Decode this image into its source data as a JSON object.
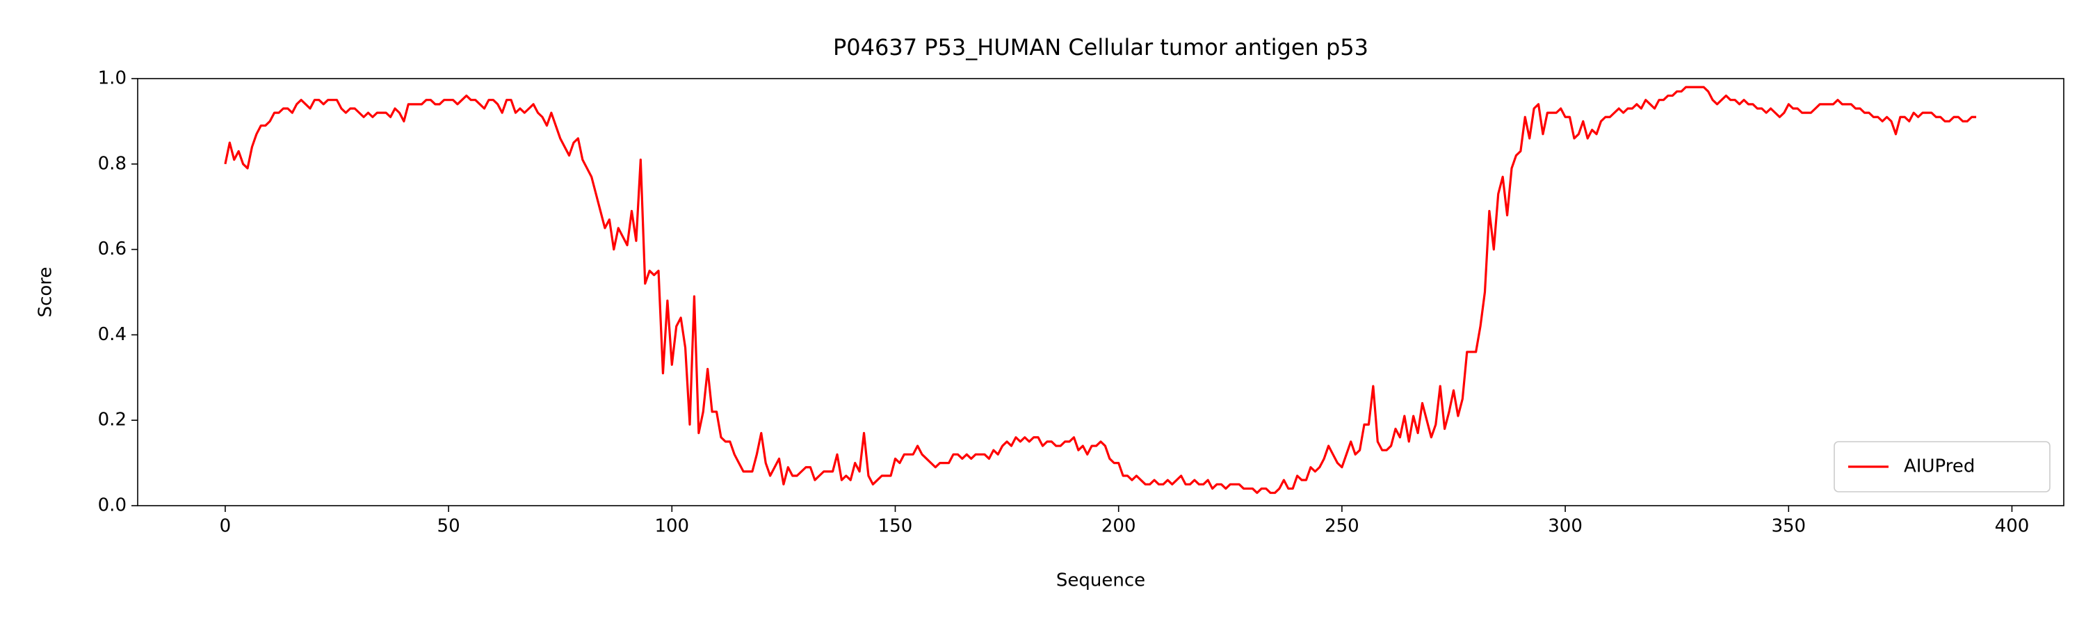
{
  "chart_data": {
    "type": "line",
    "title": "P04637 P53_HUMAN Cellular tumor antigen p53",
    "xlabel": "Sequence",
    "ylabel": "Score",
    "x": [
      0,
      1,
      2,
      3,
      4,
      5,
      6,
      7,
      8,
      9,
      10,
      11,
      12,
      13,
      14,
      15,
      16,
      17,
      18,
      19,
      20,
      21,
      22,
      23,
      24,
      25,
      26,
      27,
      28,
      29,
      30,
      31,
      32,
      33,
      34,
      35,
      36,
      37,
      38,
      39,
      40,
      41,
      42,
      43,
      44,
      45,
      46,
      47,
      48,
      49,
      50,
      51,
      52,
      53,
      54,
      55,
      56,
      57,
      58,
      59,
      60,
      61,
      62,
      63,
      64,
      65,
      66,
      67,
      68,
      69,
      70,
      71,
      72,
      73,
      74,
      75,
      76,
      77,
      78,
      79,
      80,
      81,
      82,
      83,
      84,
      85,
      86,
      87,
      88,
      89,
      90,
      91,
      92,
      93,
      94,
      95,
      96,
      97,
      98,
      99,
      100,
      101,
      102,
      103,
      104,
      105,
      106,
      107,
      108,
      109,
      110,
      111,
      112,
      113,
      114,
      115,
      116,
      117,
      118,
      119,
      120,
      121,
      122,
      123,
      124,
      125,
      126,
      127,
      128,
      129,
      130,
      131,
      132,
      133,
      134,
      135,
      136,
      137,
      138,
      139,
      140,
      141,
      142,
      143,
      144,
      145,
      146,
      147,
      148,
      149,
      150,
      151,
      152,
      153,
      154,
      155,
      156,
      157,
      158,
      159,
      160,
      161,
      162,
      163,
      164,
      165,
      166,
      167,
      168,
      169,
      170,
      171,
      172,
      173,
      174,
      175,
      176,
      177,
      178,
      179,
      180,
      181,
      182,
      183,
      184,
      185,
      186,
      187,
      188,
      189,
      190,
      191,
      192,
      193,
      194,
      195,
      196,
      197,
      198,
      199,
      200,
      201,
      202,
      203,
      204,
      205,
      206,
      207,
      208,
      209,
      210,
      211,
      212,
      213,
      214,
      215,
      216,
      217,
      218,
      219,
      220,
      221,
      222,
      223,
      224,
      225,
      226,
      227,
      228,
      229,
      230,
      231,
      232,
      233,
      234,
      235,
      236,
      237,
      238,
      239,
      240,
      241,
      242,
      243,
      244,
      245,
      246,
      247,
      248,
      249,
      250,
      251,
      252,
      253,
      254,
      255,
      256,
      257,
      258,
      259,
      260,
      261,
      262,
      263,
      264,
      265,
      266,
      267,
      268,
      269,
      270,
      271,
      272,
      273,
      274,
      275,
      276,
      277,
      278,
      279,
      280,
      281,
      282,
      283,
      284,
      285,
      286,
      287,
      288,
      289,
      290,
      291,
      292,
      293,
      294,
      295,
      296,
      297,
      298,
      299,
      300,
      301,
      302,
      303,
      304,
      305,
      306,
      307,
      308,
      309,
      310,
      311,
      312,
      313,
      314,
      315,
      316,
      317,
      318,
      319,
      320,
      321,
      322,
      323,
      324,
      325,
      326,
      327,
      328,
      329,
      330,
      331,
      332,
      333,
      334,
      335,
      336,
      337,
      338,
      339,
      340,
      341,
      342,
      343,
      344,
      345,
      346,
      347,
      348,
      349,
      350,
      351,
      352,
      353,
      354,
      355,
      356,
      357,
      358,
      359,
      360,
      361,
      362,
      363,
      364,
      365,
      366,
      367,
      368,
      369,
      370,
      371,
      372,
      373,
      374,
      375,
      376,
      377,
      378,
      379,
      380,
      381,
      382,
      383,
      384,
      385,
      386,
      387,
      388,
      389,
      390,
      391,
      392
    ],
    "series": [
      {
        "name": "AIUPred",
        "color": "#ff0000",
        "values": [
          0.8,
          0.85,
          0.81,
          0.83,
          0.8,
          0.79,
          0.84,
          0.87,
          0.89,
          0.89,
          0.9,
          0.92,
          0.92,
          0.93,
          0.93,
          0.92,
          0.94,
          0.95,
          0.94,
          0.93,
          0.95,
          0.95,
          0.94,
          0.95,
          0.95,
          0.95,
          0.93,
          0.92,
          0.93,
          0.93,
          0.92,
          0.91,
          0.92,
          0.91,
          0.92,
          0.92,
          0.92,
          0.91,
          0.93,
          0.92,
          0.9,
          0.94,
          0.94,
          0.94,
          0.94,
          0.95,
          0.95,
          0.94,
          0.94,
          0.95,
          0.95,
          0.95,
          0.94,
          0.95,
          0.96,
          0.95,
          0.95,
          0.94,
          0.93,
          0.95,
          0.95,
          0.94,
          0.92,
          0.95,
          0.95,
          0.92,
          0.93,
          0.92,
          0.93,
          0.94,
          0.92,
          0.91,
          0.89,
          0.92,
          0.89,
          0.86,
          0.84,
          0.82,
          0.85,
          0.86,
          0.81,
          0.79,
          0.77,
          0.73,
          0.69,
          0.65,
          0.67,
          0.6,
          0.65,
          0.63,
          0.61,
          0.69,
          0.62,
          0.81,
          0.52,
          0.55,
          0.54,
          0.55,
          0.31,
          0.48,
          0.33,
          0.42,
          0.44,
          0.37,
          0.19,
          0.49,
          0.17,
          0.22,
          0.32,
          0.22,
          0.22,
          0.16,
          0.15,
          0.15,
          0.12,
          0.1,
          0.08,
          0.08,
          0.08,
          0.12,
          0.17,
          0.1,
          0.07,
          0.09,
          0.11,
          0.05,
          0.09,
          0.07,
          0.07,
          0.08,
          0.09,
          0.09,
          0.06,
          0.07,
          0.08,
          0.08,
          0.08,
          0.12,
          0.06,
          0.07,
          0.06,
          0.1,
          0.08,
          0.17,
          0.07,
          0.05,
          0.06,
          0.07,
          0.07,
          0.07,
          0.11,
          0.1,
          0.12,
          0.12,
          0.12,
          0.14,
          0.12,
          0.11,
          0.1,
          0.09,
          0.1,
          0.1,
          0.1,
          0.12,
          0.12,
          0.11,
          0.12,
          0.11,
          0.12,
          0.12,
          0.12,
          0.11,
          0.13,
          0.12,
          0.14,
          0.15,
          0.14,
          0.16,
          0.15,
          0.16,
          0.15,
          0.16,
          0.16,
          0.14,
          0.15,
          0.15,
          0.14,
          0.14,
          0.15,
          0.15,
          0.16,
          0.13,
          0.14,
          0.12,
          0.14,
          0.14,
          0.15,
          0.14,
          0.11,
          0.1,
          0.1,
          0.07,
          0.07,
          0.06,
          0.07,
          0.06,
          0.05,
          0.05,
          0.06,
          0.05,
          0.05,
          0.06,
          0.05,
          0.06,
          0.07,
          0.05,
          0.05,
          0.06,
          0.05,
          0.05,
          0.06,
          0.04,
          0.05,
          0.05,
          0.04,
          0.05,
          0.05,
          0.05,
          0.04,
          0.04,
          0.04,
          0.03,
          0.04,
          0.04,
          0.03,
          0.03,
          0.04,
          0.06,
          0.04,
          0.04,
          0.07,
          0.06,
          0.06,
          0.09,
          0.08,
          0.09,
          0.11,
          0.14,
          0.12,
          0.1,
          0.09,
          0.12,
          0.15,
          0.12,
          0.13,
          0.19,
          0.19,
          0.28,
          0.15,
          0.13,
          0.13,
          0.14,
          0.18,
          0.16,
          0.21,
          0.15,
          0.21,
          0.17,
          0.24,
          0.2,
          0.16,
          0.19,
          0.28,
          0.18,
          0.22,
          0.27,
          0.21,
          0.25,
          0.36,
          0.36,
          0.36,
          0.42,
          0.5,
          0.69,
          0.6,
          0.73,
          0.77,
          0.68,
          0.79,
          0.82,
          0.83,
          0.91,
          0.86,
          0.93,
          0.94,
          0.87,
          0.92,
          0.92,
          0.92,
          0.93,
          0.91,
          0.91,
          0.86,
          0.87,
          0.9,
          0.86,
          0.88,
          0.87,
          0.9,
          0.91,
          0.91,
          0.92,
          0.93,
          0.92,
          0.93,
          0.93,
          0.94,
          0.93,
          0.95,
          0.94,
          0.93,
          0.95,
          0.95,
          0.96,
          0.96,
          0.97,
          0.97,
          0.98,
          0.98,
          0.98,
          0.98,
          0.98,
          0.97,
          0.95,
          0.94,
          0.95,
          0.96,
          0.95,
          0.95,
          0.94,
          0.95,
          0.94,
          0.94,
          0.93,
          0.93,
          0.92,
          0.93,
          0.92,
          0.91,
          0.92,
          0.94,
          0.93,
          0.93,
          0.92,
          0.92,
          0.92,
          0.93,
          0.94,
          0.94,
          0.94,
          0.94,
          0.95,
          0.94,
          0.94,
          0.94,
          0.93,
          0.93,
          0.92,
          0.92,
          0.91,
          0.91,
          0.9,
          0.91,
          0.9,
          0.87,
          0.91,
          0.91,
          0.9,
          0.92,
          0.91,
          0.92,
          0.92,
          0.92,
          0.91,
          0.91,
          0.9,
          0.9,
          0.91,
          0.91,
          0.9,
          0.9,
          0.91,
          0.91
        ]
      }
    ],
    "xlim": [
      -19.6,
      411.6
    ],
    "xticks": [
      0,
      50,
      100,
      150,
      200,
      250,
      300,
      350,
      400
    ],
    "ylim": [
      0,
      1
    ],
    "yticks": [
      {
        "value": 0,
        "label": "0.0"
      },
      0.2,
      0.4,
      0.6,
      0.8,
      {
        "value": 1,
        "label": "1.0"
      }
    ],
    "grid": false,
    "legend": "lower right"
  }
}
